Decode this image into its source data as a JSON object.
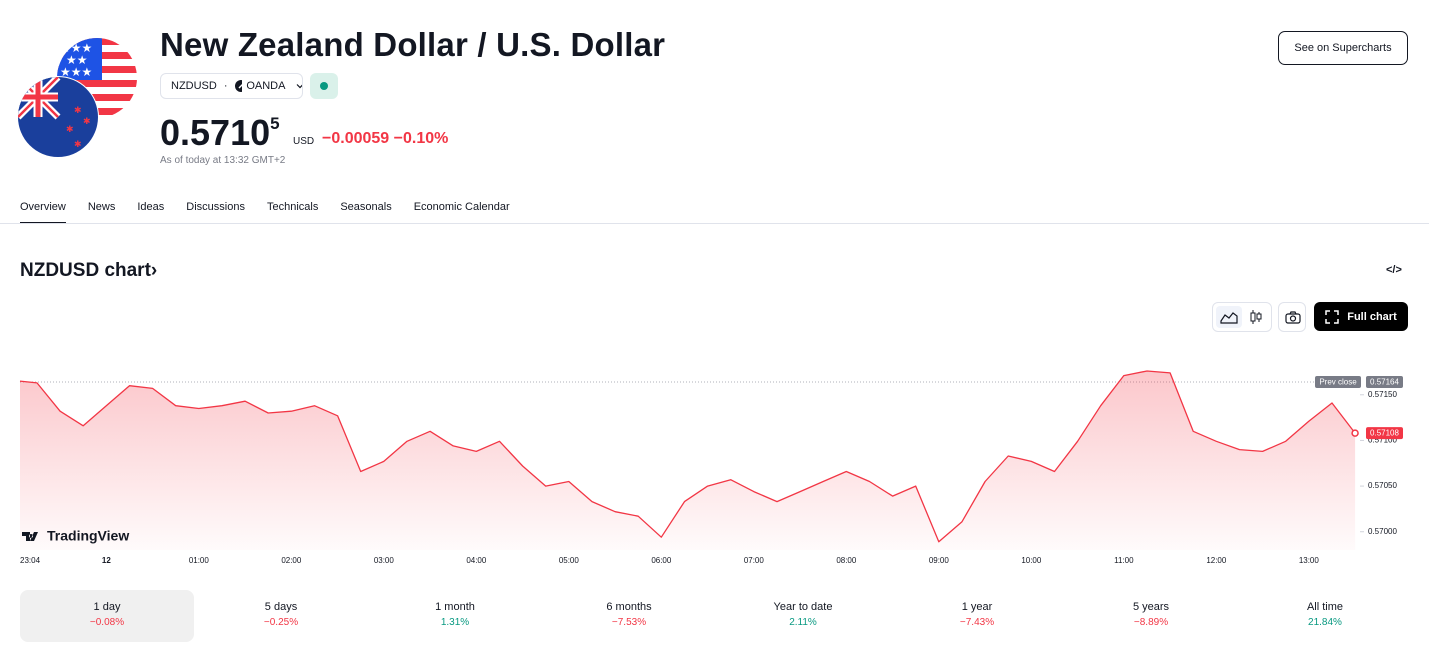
{
  "header": {
    "title": "New Zealand Dollar / U.S. Dollar",
    "symbol": "NZDUSD",
    "separator": "·",
    "exchange": "OANDA",
    "price": "0.5710",
    "price_last_digit": "5",
    "currency": "USD",
    "change": "−0.00059",
    "change_percent": "−0.10%",
    "as_of": "As of today at 13:32 GMT+2",
    "supercharts_button": "See on Supercharts"
  },
  "tabs": [
    "Overview",
    "News",
    "Ideas",
    "Discussions",
    "Technicals",
    "Seasonals",
    "Economic Calendar"
  ],
  "chart_section": {
    "title": "NZDUSD chart",
    "full_chart_button": "Full chart",
    "logo": "TradingView"
  },
  "chart_data": {
    "type": "line",
    "color": "#f23645",
    "x": [
      "23:04",
      "23:15",
      "23:30",
      "23:45",
      "00:00",
      "00:15",
      "00:30",
      "00:45",
      "01:00",
      "01:15",
      "01:30",
      "01:45",
      "02:00",
      "02:15",
      "02:30",
      "02:45",
      "03:00",
      "03:15",
      "03:30",
      "03:45",
      "04:00",
      "04:15",
      "04:30",
      "04:45",
      "05:00",
      "05:15",
      "05:30",
      "05:45",
      "06:00",
      "06:15",
      "06:30",
      "06:45",
      "07:00",
      "07:15",
      "07:30",
      "07:45",
      "08:00",
      "08:15",
      "08:30",
      "08:45",
      "09:00",
      "09:15",
      "09:30",
      "09:45",
      "10:00",
      "10:15",
      "10:30",
      "10:45",
      "11:00",
      "11:15",
      "11:30",
      "11:45",
      "12:00",
      "12:15",
      "12:30",
      "12:45",
      "13:00",
      "13:15",
      "13:30"
    ],
    "values": [
      0.57165,
      0.57163,
      0.57132,
      0.57116,
      0.57138,
      0.5716,
      0.57157,
      0.57138,
      0.57135,
      0.57138,
      0.57143,
      0.5713,
      0.57132,
      0.57138,
      0.57127,
      0.57066,
      0.57077,
      0.57099,
      0.5711,
      0.57094,
      0.57088,
      0.57099,
      0.57072,
      0.5705,
      0.57055,
      0.57033,
      0.57022,
      0.57017,
      0.56994,
      0.57033,
      0.5705,
      0.57057,
      0.57044,
      0.57033,
      0.57044,
      0.57055,
      0.57066,
      0.57055,
      0.57039,
      0.5705,
      0.56989,
      0.57011,
      0.57055,
      0.57083,
      0.57077,
      0.57066,
      0.57099,
      0.57138,
      0.57171,
      0.57176,
      0.57174,
      0.5711,
      0.57099,
      0.5709,
      0.57088,
      0.57099,
      0.57121,
      0.57141,
      0.57108
    ],
    "ylim": [
      0.5698,
      0.5721
    ],
    "yticks": [
      {
        "value": 0.57,
        "label": "0.57000"
      },
      {
        "value": 0.5705,
        "label": "0.57050"
      },
      {
        "value": 0.571,
        "label": "0.57100"
      },
      {
        "value": 0.5715,
        "label": "0.57150"
      }
    ],
    "xticks": [
      "23:04",
      {
        "value": "00:00",
        "label": "12"
      },
      "01:00",
      "02:00",
      "03:00",
      "04:00",
      "05:00",
      "06:00",
      "07:00",
      "08:00",
      "09:00",
      "10:00",
      "11:00",
      "12:00",
      "13:00"
    ],
    "prev_close": 0.57164,
    "prev_close_label": "Prev close"
  },
  "periods": [
    {
      "label": "1 day",
      "change": "−0.08%"
    },
    {
      "label": "5 days",
      "change": "−0.25%"
    },
    {
      "label": "1 month",
      "change": "1.31%"
    },
    {
      "label": "6 months",
      "change": "−7.53%"
    },
    {
      "label": "Year to date",
      "change": "2.11%"
    },
    {
      "label": "1 year",
      "change": "−7.43%"
    },
    {
      "label": "5 years",
      "change": "−8.89%"
    },
    {
      "label": "All time",
      "change": "21.84%"
    }
  ]
}
